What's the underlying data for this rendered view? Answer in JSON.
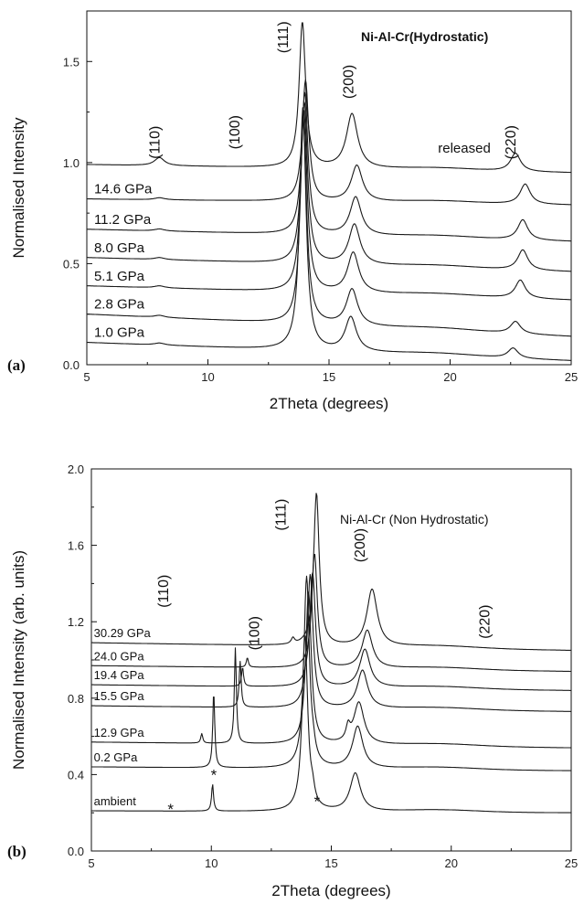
{
  "chart_data": [
    {
      "panel": "(a)",
      "type": "line",
      "title": "Ni-Al-Cr(Hydrostatic)",
      "xlabel": "2Theta (degrees)",
      "ylabel": "Normalised Intensity",
      "xlim": [
        5,
        25
      ],
      "ylim": [
        0.0,
        1.75
      ],
      "xticks": [
        "5",
        "10",
        "15",
        "20",
        "25"
      ],
      "yticks": [
        "0.0",
        "0.5",
        "1.0",
        "1.5"
      ],
      "peak_labels": [
        {
          "text": "(110)",
          "x": 8.0,
          "y": 1.1
        },
        {
          "text": "(100)",
          "x": 11.3,
          "y": 1.15
        },
        {
          "text": "(111)",
          "x": 13.3,
          "y": 1.62
        },
        {
          "text": "(200)",
          "x": 16.0,
          "y": 1.4
        },
        {
          "text": "(220)",
          "x": 22.7,
          "y": 1.1
        }
      ],
      "series": [
        {
          "name": "1.0 GPa",
          "baseline_left": 0.11,
          "baseline_right": 0.02,
          "label_x": 5.3,
          "peaks": [
            {
              "x": 8.0,
              "h": 0.01,
              "w": 0.25
            },
            {
              "x": 13.92,
              "h": 1.2,
              "w": 0.16
            },
            {
              "x": 15.9,
              "h": 0.17,
              "w": 0.28
            },
            {
              "x": 22.6,
              "h": 0.05,
              "w": 0.25
            }
          ]
        },
        {
          "name": "2.8 GPa",
          "baseline_left": 0.25,
          "baseline_right": 0.14,
          "label_x": 5.3,
          "peaks": [
            {
              "x": 8.0,
              "h": 0.01,
              "w": 0.25
            },
            {
              "x": 13.94,
              "h": 1.0,
              "w": 0.16
            },
            {
              "x": 15.95,
              "h": 0.18,
              "w": 0.28
            },
            {
              "x": 22.7,
              "h": 0.06,
              "w": 0.25
            }
          ]
        },
        {
          "name": "5.1 GPa",
          "baseline_left": 0.39,
          "baseline_right": 0.32,
          "label_x": 5.3,
          "peaks": [
            {
              "x": 8.0,
              "h": 0.01,
              "w": 0.25
            },
            {
              "x": 13.96,
              "h": 0.9,
              "w": 0.16
            },
            {
              "x": 16.0,
              "h": 0.2,
              "w": 0.28
            },
            {
              "x": 22.9,
              "h": 0.09,
              "w": 0.25
            }
          ]
        },
        {
          "name": "8.0 GPa",
          "baseline_left": 0.53,
          "baseline_right": 0.46,
          "label_x": 5.3,
          "peaks": [
            {
              "x": 8.0,
              "h": 0.01,
              "w": 0.25
            },
            {
              "x": 13.98,
              "h": 0.8,
              "w": 0.16
            },
            {
              "x": 16.05,
              "h": 0.2,
              "w": 0.28
            },
            {
              "x": 23.0,
              "h": 0.1,
              "w": 0.25
            }
          ]
        },
        {
          "name": "11.2 GPa",
          "baseline_left": 0.67,
          "baseline_right": 0.61,
          "label_x": 5.3,
          "peaks": [
            {
              "x": 8.0,
              "h": 0.01,
              "w": 0.25
            },
            {
              "x": 14.0,
              "h": 0.7,
              "w": 0.16
            },
            {
              "x": 16.1,
              "h": 0.19,
              "w": 0.28
            },
            {
              "x": 23.0,
              "h": 0.1,
              "w": 0.25
            }
          ]
        },
        {
          "name": "14.6 GPa",
          "baseline_left": 0.82,
          "baseline_right": 0.79,
          "label_x": 5.3,
          "peaks": [
            {
              "x": 8.0,
              "h": 0.01,
              "w": 0.25
            },
            {
              "x": 14.03,
              "h": 0.6,
              "w": 0.16
            },
            {
              "x": 16.15,
              "h": 0.18,
              "w": 0.28
            },
            {
              "x": 23.1,
              "h": 0.1,
              "w": 0.25
            }
          ]
        },
        {
          "name": "released",
          "baseline_left": 0.99,
          "baseline_right": 0.95,
          "label_x": 19.5,
          "label_y": 1.05,
          "peaks": [
            {
              "x": 8.0,
              "h": 0.04,
              "w": 0.25
            },
            {
              "x": 13.9,
              "h": 0.72,
              "w": 0.16
            },
            {
              "x": 15.95,
              "h": 0.27,
              "w": 0.28
            },
            {
              "x": 22.7,
              "h": 0.09,
              "w": 0.25
            }
          ]
        }
      ]
    },
    {
      "panel": "(b)",
      "type": "line",
      "title": "Ni-Al-Cr (Non Hydrostatic)",
      "xlabel": "2Theta (degrees)",
      "ylabel": "Normalised Intensity (arb. units)",
      "xlim": [
        5,
        25
      ],
      "ylim": [
        0.0,
        2.0
      ],
      "xticks": [
        "5",
        "10",
        "15",
        "20",
        "25"
      ],
      "yticks": [
        "0.0",
        "0.4",
        "0.8",
        "1.2",
        "1.6",
        "2.0"
      ],
      "peak_labels": [
        {
          "text": "(110)",
          "x": 8.2,
          "y": 1.36
        },
        {
          "text": "(100)",
          "x": 12.0,
          "y": 1.14
        },
        {
          "text": "(111)",
          "x": 13.1,
          "y": 1.76
        },
        {
          "text": "(200)",
          "x": 16.4,
          "y": 1.6
        },
        {
          "text": "(220)",
          "x": 21.6,
          "y": 1.2
        }
      ],
      "stars": [
        {
          "text": "*",
          "x": 8.3,
          "y": 0.22
        },
        {
          "text": "*",
          "x": 10.1,
          "y": 0.4
        },
        {
          "text": "*",
          "x": 14.4,
          "y": 0.26
        }
      ],
      "series": [
        {
          "name": "ambient",
          "baseline_left": 0.21,
          "baseline_right": 0.2,
          "label_x": 5.1,
          "peaks": [
            {
              "x": 10.05,
              "h": 0.14,
              "w": 0.05
            },
            {
              "x": 13.9,
              "h": 0.92,
              "w": 0.14
            },
            {
              "x": 14.22,
              "h": 0.06,
              "w": 0.1
            },
            {
              "x": 16.0,
              "h": 0.2,
              "w": 0.26
            }
          ]
        },
        {
          "name": "0.2 GPa",
          "baseline_left": 0.44,
          "baseline_right": 0.42,
          "label_x": 5.1,
          "peaks": [
            {
              "x": 10.1,
              "h": 0.4,
              "w": 0.05
            },
            {
              "x": 13.97,
              "h": 1.0,
              "w": 0.14
            },
            {
              "x": 14.25,
              "h": 0.04,
              "w": 0.1
            },
            {
              "x": 16.1,
              "h": 0.22,
              "w": 0.26
            }
          ]
        },
        {
          "name": "12.9 GPa",
          "baseline_left": 0.57,
          "baseline_right": 0.54,
          "label_x": 5.1,
          "peaks": [
            {
              "x": 9.6,
              "h": 0.05,
              "w": 0.05
            },
            {
              "x": 11.0,
              "h": 0.5,
              "w": 0.05
            },
            {
              "x": 14.05,
              "h": 0.8,
              "w": 0.14
            },
            {
              "x": 15.7,
              "h": 0.07,
              "w": 0.1
            },
            {
              "x": 16.15,
              "h": 0.22,
              "w": 0.26
            }
          ]
        },
        {
          "name": "15.5 GPa",
          "baseline_left": 0.76,
          "baseline_right": 0.73,
          "label_x": 5.1,
          "peaks": [
            {
              "x": 11.2,
              "h": 0.24,
              "w": 0.05
            },
            {
              "x": 14.12,
              "h": 0.7,
              "w": 0.14
            },
            {
              "x": 16.3,
              "h": 0.2,
              "w": 0.26
            }
          ]
        },
        {
          "name": "19.4 GPa",
          "baseline_left": 0.87,
          "baseline_right": 0.84,
          "label_x": 5.1,
          "peaks": [
            {
              "x": 11.3,
              "h": 0.1,
              "w": 0.05
            },
            {
              "x": 14.22,
              "h": 0.6,
              "w": 0.14
            },
            {
              "x": 16.4,
              "h": 0.2,
              "w": 0.26
            }
          ]
        },
        {
          "name": "24.0 GPa",
          "baseline_left": 0.97,
          "baseline_right": 0.94,
          "label_x": 5.1,
          "peaks": [
            {
              "x": 11.5,
              "h": 0.05,
              "w": 0.05
            },
            {
              "x": 14.3,
              "h": 0.6,
              "w": 0.14
            },
            {
              "x": 16.5,
              "h": 0.2,
              "w": 0.26
            }
          ]
        },
        {
          "name": "30.29 GPa",
          "baseline_left": 1.09,
          "baseline_right": 1.05,
          "label_x": 5.1,
          "peaks": [
            {
              "x": 13.4,
              "h": 0.03,
              "w": 0.08
            },
            {
              "x": 14.38,
              "h": 0.8,
              "w": 0.14
            },
            {
              "x": 16.7,
              "h": 0.3,
              "w": 0.26
            }
          ]
        }
      ]
    }
  ]
}
